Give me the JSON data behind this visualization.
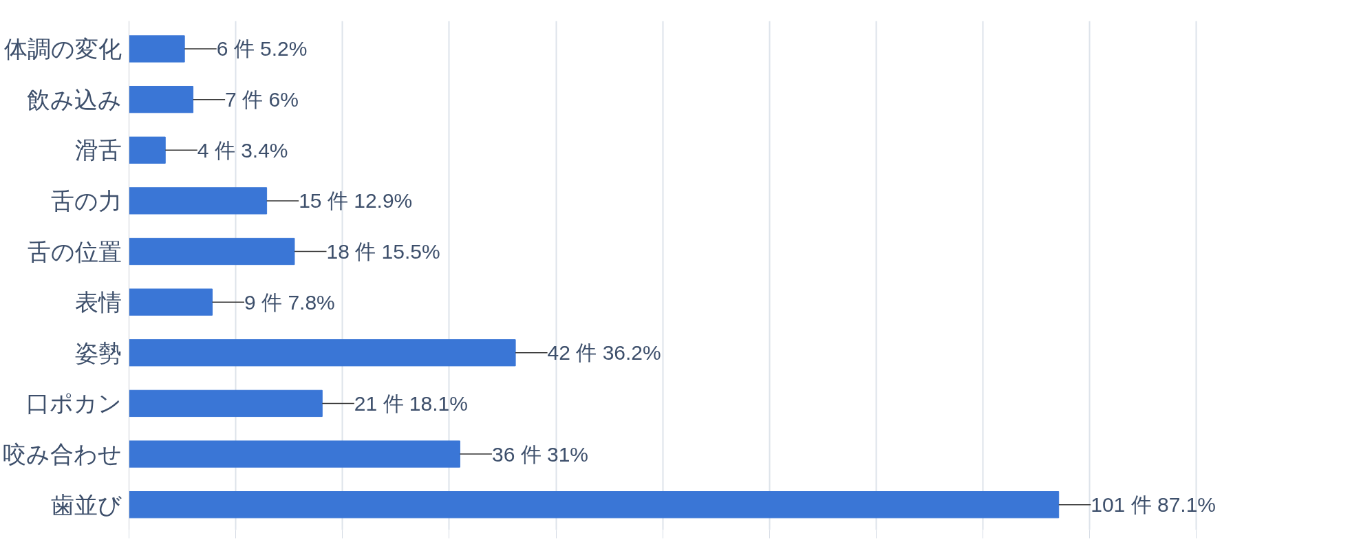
{
  "chart_data": {
    "type": "bar",
    "orientation": "horizontal",
    "categories": [
      "体調の変化",
      "飲み込み",
      "滑舌",
      "舌の力",
      "舌の位置",
      "表情",
      "姿勢",
      "口ポカン",
      "咬み合わせ",
      "歯並び"
    ],
    "values": [
      5.2,
      6,
      3.4,
      12.9,
      15.5,
      7.8,
      36.2,
      18.1,
      31,
      87.1
    ],
    "value_labels": [
      "6 件 5.2%",
      "7 件 6%",
      "4 件 3.4%",
      "15 件 12.9%",
      "18 件 15.5%",
      "9 件 7.8%",
      "42 件 36.2%",
      "21 件 18.1%",
      "36 件 31%",
      "101 件 87.1%"
    ],
    "color": "#3a76d6",
    "xticks": [
      {
        "value": 0,
        "label": null
      },
      {
        "value": 10,
        "label": null
      },
      {
        "value": 20,
        "label": null
      },
      {
        "value": 30,
        "label": null
      },
      {
        "value": 40,
        "label": null
      },
      {
        "value": 50,
        "label": null
      },
      {
        "value": 60,
        "label": null
      },
      {
        "value": 70,
        "label": null
      },
      {
        "value": 80,
        "label": null
      },
      {
        "value": 90,
        "label": null
      },
      {
        "value": 100,
        "label": null
      }
    ],
    "grid": "x",
    "tick_labels": "y"
  }
}
